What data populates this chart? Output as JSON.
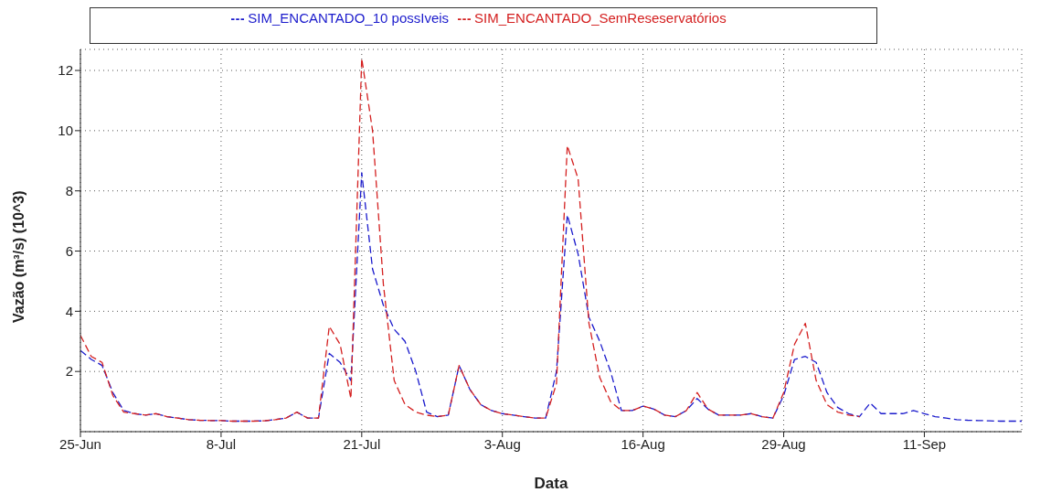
{
  "chart_data": {
    "type": "line",
    "xlabel": "Data",
    "ylabel": "Vazão (m³/s) (10^3)",
    "x": [
      "--06-25",
      "--06-26",
      "--06-27",
      "--06-28",
      "--06-29",
      "--06-30",
      "--07-01",
      "--07-02",
      "--07-03",
      "--07-04",
      "--07-05",
      "--07-06",
      "--07-07",
      "--07-08",
      "--07-09",
      "--07-10",
      "--07-11",
      "--07-12",
      "--07-13",
      "--07-14",
      "--07-15",
      "--07-16",
      "--07-17",
      "--07-18",
      "--07-19",
      "--07-20",
      "--07-21",
      "--07-22",
      "--07-23",
      "--07-24",
      "--07-25",
      "--07-26",
      "--07-27",
      "--07-28",
      "--07-29",
      "--07-30",
      "--07-31",
      "--08-01",
      "--08-02",
      "--08-03",
      "--08-04",
      "--08-05",
      "--08-06",
      "--08-07",
      "--08-08",
      "--08-09",
      "--08-10",
      "--08-11",
      "--08-12",
      "--08-13",
      "--08-14",
      "--08-15",
      "--08-16",
      "--08-17",
      "--08-18",
      "--08-19",
      "--08-20",
      "--08-21",
      "--08-22",
      "--08-23",
      "--08-24",
      "--08-25",
      "--08-26",
      "--08-27",
      "--08-28",
      "--08-29",
      "--08-30",
      "--08-31",
      "--09-01",
      "--09-02",
      "--09-03",
      "--09-04",
      "--09-05",
      "--09-06",
      "--09-07",
      "--09-08",
      "--09-09",
      "--09-10",
      "--09-11",
      "--09-12",
      "--09-13",
      "--09-14",
      "--09-15",
      "--09-16",
      "--09-17",
      "--09-18",
      "--09-19",
      "--09-20"
    ],
    "series": [
      {
        "name": "SIM_ENCANTADO_10 possIveis",
        "color": "#1a1acc",
        "values": [
          2.7,
          2.4,
          2.2,
          1.3,
          0.7,
          0.6,
          0.55,
          0.6,
          0.5,
          0.45,
          0.4,
          0.38,
          0.37,
          0.37,
          0.35,
          0.35,
          0.35,
          0.36,
          0.4,
          0.45,
          0.65,
          0.45,
          0.45,
          2.6,
          2.3,
          1.7,
          8.6,
          5.4,
          4.2,
          3.4,
          3.0,
          2.0,
          0.65,
          0.5,
          0.55,
          2.2,
          1.4,
          0.9,
          0.7,
          0.6,
          0.55,
          0.5,
          0.45,
          0.45,
          2.0,
          7.2,
          5.9,
          3.8,
          3.0,
          2.0,
          0.7,
          0.7,
          0.85,
          0.75,
          0.55,
          0.5,
          0.7,
          1.1,
          0.75,
          0.55,
          0.55,
          0.55,
          0.6,
          0.5,
          0.45,
          1.2,
          2.4,
          2.5,
          2.3,
          1.3,
          0.8,
          0.6,
          0.5,
          0.95,
          0.6,
          0.6,
          0.6,
          0.7,
          0.6,
          0.5,
          0.45,
          0.4,
          0.38,
          0.37,
          0.36,
          0.35,
          0.35,
          0.35
        ]
      },
      {
        "name": "SIM_ENCANTADO_SemReseservatórios",
        "color": "#d42020",
        "values": [
          3.2,
          2.5,
          2.3,
          1.2,
          0.65,
          0.6,
          0.55,
          0.6,
          0.5,
          0.45,
          0.4,
          0.38,
          0.37,
          0.37,
          0.35,
          0.35,
          0.35,
          0.36,
          0.4,
          0.45,
          0.65,
          0.45,
          0.45,
          3.5,
          2.9,
          1.1,
          12.4,
          10.0,
          4.9,
          1.7,
          0.9,
          0.65,
          0.55,
          0.5,
          0.55,
          2.2,
          1.4,
          0.9,
          0.7,
          0.6,
          0.55,
          0.5,
          0.45,
          0.45,
          1.6,
          9.5,
          8.4,
          3.6,
          1.8,
          1.0,
          0.7,
          0.7,
          0.85,
          0.75,
          0.55,
          0.5,
          0.7,
          1.3,
          0.75,
          0.55,
          0.55,
          0.55,
          0.6,
          0.5,
          0.45,
          1.3,
          2.9,
          3.6,
          1.7,
          0.9,
          0.65,
          0.55,
          0.5,
          null,
          null,
          null,
          null,
          null,
          null,
          null,
          null,
          null,
          null,
          null,
          null,
          null,
          null,
          null
        ]
      }
    ],
    "xlim": [
      "--06-25",
      "--09-20"
    ],
    "xticks": [
      {
        "value": "--06-25",
        "label": "25-Jun"
      },
      {
        "value": "--07-08",
        "label": "8-Jul"
      },
      {
        "value": "--07-21",
        "label": "21-Jul"
      },
      {
        "value": "--08-03",
        "label": "3-Aug"
      },
      {
        "value": "--08-16",
        "label": "16-Aug"
      },
      {
        "value": "--08-29",
        "label": "29-Aug"
      },
      {
        "value": "--09-11",
        "label": "11-Sep"
      }
    ],
    "ylim": [
      0,
      12.7
    ],
    "yticks": [
      2,
      4,
      6,
      8,
      10,
      12
    ],
    "grid": true,
    "legend": "top",
    "line_style": "dashed",
    "marker": "none"
  }
}
